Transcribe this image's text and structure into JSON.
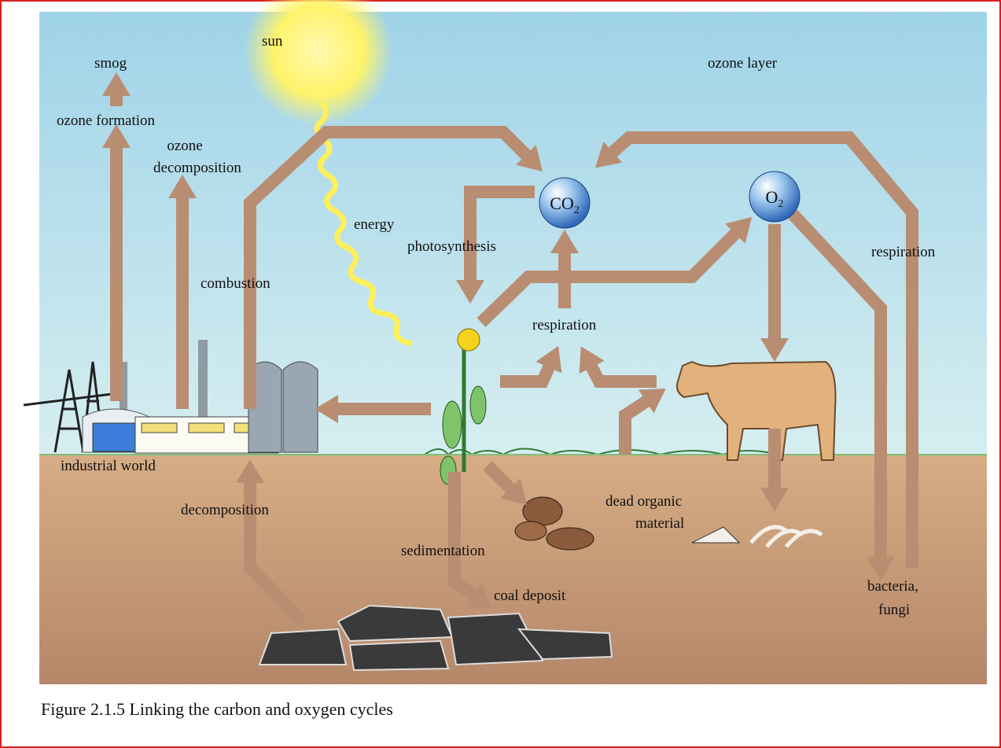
{
  "figure": {
    "caption": "Figure 2.1.5 Linking the carbon and oxygen cycles",
    "labels": {
      "smog": "smog",
      "sun": "sun",
      "ozone_layer": "ozone layer",
      "ozone_formation": "ozone formation",
      "ozone_decomposition": [
        "ozone",
        "decomposition"
      ],
      "energy": "energy",
      "photosynthesis": "photosynthesis",
      "co2": [
        "CO",
        "2"
      ],
      "o2": [
        "O",
        "2"
      ],
      "respiration_atmosphere": "respiration",
      "respiration_organisms": "respiration",
      "combustion": "combustion",
      "industrial_world": "industrial world",
      "decomposition": "decomposition",
      "dead_organic_material": [
        "dead organic",
        "material"
      ],
      "sedimentation": "sedimentation",
      "coal_deposit": "coal deposit",
      "bacteria_fungi": [
        "bacteria,",
        "fungi"
      ]
    }
  }
}
